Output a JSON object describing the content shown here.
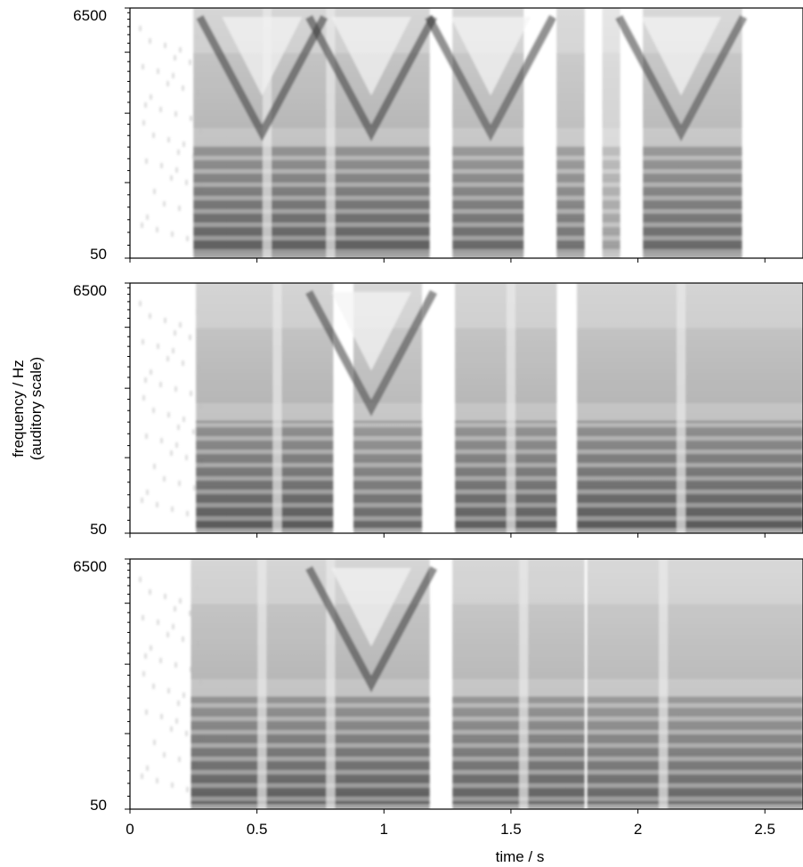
{
  "chart_data": {
    "type": "heatmap",
    "description_free": true,
    "xlabel": "time / s",
    "ylabel_line1": "frequency / Hz",
    "ylabel_line2": "(auditory scale)",
    "xlim": [
      0,
      2.65
    ],
    "x_ticks": [
      0,
      0.5,
      1,
      1.5,
      2,
      2.5
    ],
    "x_tick_labels": [
      "0",
      "0.5",
      "1",
      "1.5",
      "2",
      "2.5"
    ],
    "y_scale": "auditory",
    "panels": [
      {
        "ylim": [
          50,
          6500
        ],
        "y_tick_labels": [
          "6500",
          "50"
        ],
        "segments": [
          {
            "start": 0.25,
            "end": 1.18,
            "intensity": 0.7,
            "valleys": [
              0.54,
              0.79
            ],
            "vshapes": [
              0.52,
              0.95
            ]
          },
          {
            "start": 1.27,
            "end": 1.55,
            "intensity": 0.65,
            "valleys": [],
            "vshapes": [
              1.42
            ]
          },
          {
            "start": 1.68,
            "end": 1.79,
            "intensity": 0.6,
            "valleys": [],
            "vshapes": []
          },
          {
            "start": 1.86,
            "end": 1.93,
            "intensity": 0.35,
            "valleys": [],
            "vshapes": []
          },
          {
            "start": 2.02,
            "end": 2.41,
            "intensity": 0.65,
            "valleys": [],
            "vshapes": [
              2.17
            ]
          }
        ]
      },
      {
        "ylim": [
          50,
          6500
        ],
        "y_tick_labels": [
          "6500",
          "50"
        ],
        "segments": [
          {
            "start": 0.26,
            "end": 0.8,
            "intensity": 0.72,
            "valleys": [
              0.58
            ],
            "vshapes": []
          },
          {
            "start": 0.88,
            "end": 1.15,
            "intensity": 0.65,
            "valleys": [],
            "vshapes": [
              0.95
            ]
          },
          {
            "start": 1.28,
            "end": 1.68,
            "intensity": 0.7,
            "valleys": [
              1.5
            ],
            "vshapes": []
          },
          {
            "start": 1.76,
            "end": 2.65,
            "intensity": 0.72,
            "valleys": [
              2.17
            ],
            "vshapes": []
          }
        ]
      },
      {
        "ylim": [
          50,
          6500
        ],
        "y_tick_labels": [
          "6500",
          "50"
        ],
        "segments": [
          {
            "start": 0.24,
            "end": 1.18,
            "intensity": 0.7,
            "valleys": [
              0.52,
              0.79
            ],
            "vshapes": [
              0.95
            ]
          },
          {
            "start": 1.27,
            "end": 1.79,
            "intensity": 0.68,
            "valleys": [
              1.55
            ],
            "vshapes": []
          },
          {
            "start": 1.8,
            "end": 2.65,
            "intensity": 0.65,
            "valleys": [
              2.1
            ],
            "vshapes": []
          }
        ]
      }
    ],
    "colormap": [
      "#ffffff",
      "#000000"
    ],
    "grid": false
  }
}
